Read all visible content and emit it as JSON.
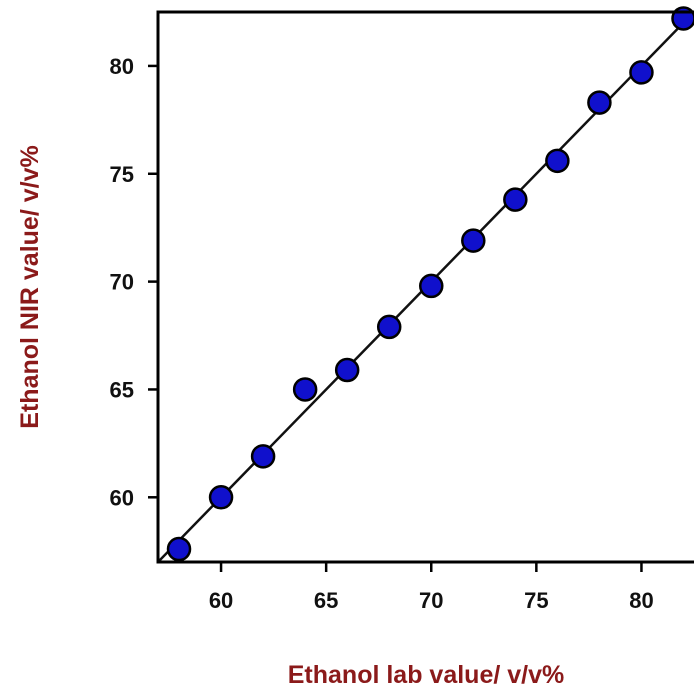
{
  "chart_data": {
    "type": "scatter",
    "xlabel": "Ethanol lab value/ v/v%",
    "ylabel": "Ethanol NIR value/ v/v%",
    "xlim": [
      57,
      82.5
    ],
    "ylim": [
      57,
      82.5
    ],
    "x_ticks": [
      60,
      65,
      70,
      75,
      80
    ],
    "y_ticks": [
      60,
      65,
      70,
      75,
      80
    ],
    "grid": false,
    "series": [
      {
        "x": [
          58,
          60,
          62,
          64,
          66,
          68,
          70,
          72,
          74,
          76,
          78,
          80,
          82
        ],
        "y": [
          57.6,
          60.0,
          61.9,
          65.0,
          65.9,
          67.9,
          69.8,
          71.9,
          73.8,
          75.6,
          78.3,
          79.7,
          82.2
        ]
      }
    ],
    "fit_line": {
      "x": [
        57,
        82.5
      ],
      "y": [
        57,
        82.5
      ]
    },
    "colors": {
      "marker_fill": "#1010cc",
      "marker_edge": "#000000",
      "line": "#111111",
      "axis_title": "#8b1a1a",
      "frame": "#000000"
    }
  }
}
